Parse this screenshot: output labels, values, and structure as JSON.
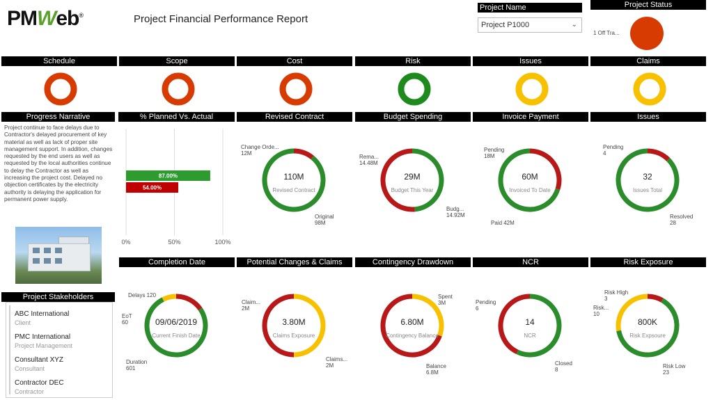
{
  "brand": {
    "logo_pm": "PM",
    "logo_w": "W",
    "logo_eb": "eb",
    "logo_reg": "®"
  },
  "report_title": "Project Financial Performance Report",
  "project_name": {
    "label": "Project Name",
    "value": "Project P1000"
  },
  "project_status": {
    "label": "Project Status",
    "legend": "1 Off Tra...",
    "color": "#d83b01"
  },
  "status_cards": [
    {
      "label": "Schedule",
      "color": "#d83b01"
    },
    {
      "label": "Scope",
      "color": "#d83b01"
    },
    {
      "label": "Cost",
      "color": "#d83b01"
    },
    {
      "label": "Risk",
      "color": "#1e8a1e"
    },
    {
      "label": "Issues",
      "color": "#f8c100"
    },
    {
      "label": "Claims",
      "color": "#f8c100"
    }
  ],
  "narrative": {
    "title": "Progress Narrative",
    "text": "Project continue to face delays due to Contractor's delayed procurement of key material as well as lack of proper site management support. In addition, changes requested by the end users as well as requested by the local authorities continue to delay the Contractor as well as increasing the project cost. Delayed no objection certificates by the electricity authority is delaying the application for permanent power supply."
  },
  "planned_actual": {
    "title": "% Planned Vs. Actual",
    "bars": [
      {
        "label": "87.00%",
        "value": 87,
        "color": "#2e9b2e"
      },
      {
        "label": "54.00%",
        "value": 54,
        "color": "#c00000"
      }
    ],
    "ticks": [
      "0%",
      "50%",
      "100%"
    ]
  },
  "donuts_row1": [
    {
      "title": "Revised Contract",
      "value": "110M",
      "sub": "Revised Contract",
      "labels": [
        {
          "t1": "Change Orde...",
          "t2": "12M"
        },
        {
          "t1": "Original",
          "t2": "98M"
        }
      ],
      "segments": [
        {
          "frac": 0.109,
          "color": "#b81818"
        },
        {
          "frac": 0.891,
          "color": "#2a8c2a"
        }
      ]
    },
    {
      "title": "Budget Spending",
      "value": "29M",
      "sub": "Budget This Year",
      "labels": [
        {
          "t1": "Rema...",
          "t2": "14.48M"
        },
        {
          "t1": "Budg...",
          "t2": "14.92M"
        }
      ],
      "segments": [
        {
          "frac": 0.486,
          "color": "#2a8c2a"
        },
        {
          "frac": 0.514,
          "color": "#b81818"
        }
      ]
    },
    {
      "title": "Invoice Payment",
      "value": "60M",
      "sub": "Invoiced To Date",
      "labels": [
        {
          "t1": "Pending",
          "t2": "18M"
        },
        {
          "t1": "Paid 42M",
          "t2": ""
        }
      ],
      "segments": [
        {
          "frac": 0.3,
          "color": "#b81818"
        },
        {
          "frac": 0.7,
          "color": "#2a8c2a"
        }
      ]
    },
    {
      "title": "Issues",
      "value": "32",
      "sub": "Issues Total",
      "labels": [
        {
          "t1": "Pending",
          "t2": "4"
        },
        {
          "t1": "Resolved",
          "t2": "28"
        }
      ],
      "segments": [
        {
          "frac": 0.125,
          "color": "#b81818"
        },
        {
          "frac": 0.875,
          "color": "#2a8c2a"
        }
      ]
    }
  ],
  "donuts_row2": [
    {
      "title": "Completion Date",
      "value": "09/06/2019",
      "sub": "Current Finish Date",
      "labels": [
        {
          "t1": "Delays 120",
          "t2": ""
        },
        {
          "t1": "EoT",
          "t2": "60"
        },
        {
          "t1": "Duration",
          "t2": "601"
        }
      ],
      "segments": [
        {
          "frac": 0.154,
          "color": "#b81818"
        },
        {
          "frac": 0.772,
          "color": "#2a8c2a"
        },
        {
          "frac": 0.077,
          "color": "#f8c100"
        }
      ]
    },
    {
      "title": "Potential Changes & Claims",
      "value": "3.80M",
      "sub": "Claims Exposure",
      "labels": [
        {
          "t1": "Claim...",
          "t2": "2M"
        },
        {
          "t1": "Claims...",
          "t2": "2M"
        }
      ],
      "segments": [
        {
          "frac": 0.5,
          "color": "#f8c100"
        },
        {
          "frac": 0.5,
          "color": "#b81818"
        }
      ]
    },
    {
      "title": "Contingency Drawdown",
      "value": "6.80M",
      "sub": "Contingency Balance",
      "labels": [
        {
          "t1": "Spent",
          "t2": "3M"
        },
        {
          "t1": "Balance",
          "t2": "6.8M"
        }
      ],
      "segments": [
        {
          "frac": 0.306,
          "color": "#f8c100"
        },
        {
          "frac": 0.694,
          "color": "#b81818"
        }
      ]
    },
    {
      "title": "NCR",
      "value": "14",
      "sub": "NCR",
      "labels": [
        {
          "t1": "Pending",
          "t2": "6"
        },
        {
          "t1": "Closed",
          "t2": "8"
        }
      ],
      "segments": [
        {
          "frac": 0.571,
          "color": "#2a8c2a"
        },
        {
          "frac": 0.429,
          "color": "#b81818"
        }
      ]
    },
    {
      "title": "Risk Exposure",
      "value": "800K",
      "sub": "Risk Expsoure",
      "labels": [
        {
          "t1": "Risk High",
          "t2": "3"
        },
        {
          "t1": "Risk...",
          "t2": "10"
        },
        {
          "t1": "Risk Low",
          "t2": "23"
        }
      ],
      "segments": [
        {
          "frac": 0.083,
          "color": "#b81818"
        },
        {
          "frac": 0.639,
          "color": "#2a8c2a"
        },
        {
          "frac": 0.278,
          "color": "#f8c100"
        }
      ]
    }
  ],
  "stakeholders": {
    "title": "Project Stakeholders",
    "items": [
      {
        "name": "ABC International",
        "role": "Client"
      },
      {
        "name": "PMC International",
        "role": "Project Management"
      },
      {
        "name": "Consultant XYZ",
        "role": "Consultant"
      },
      {
        "name": "Contractor DEC",
        "role": "Contractor"
      }
    ]
  }
}
